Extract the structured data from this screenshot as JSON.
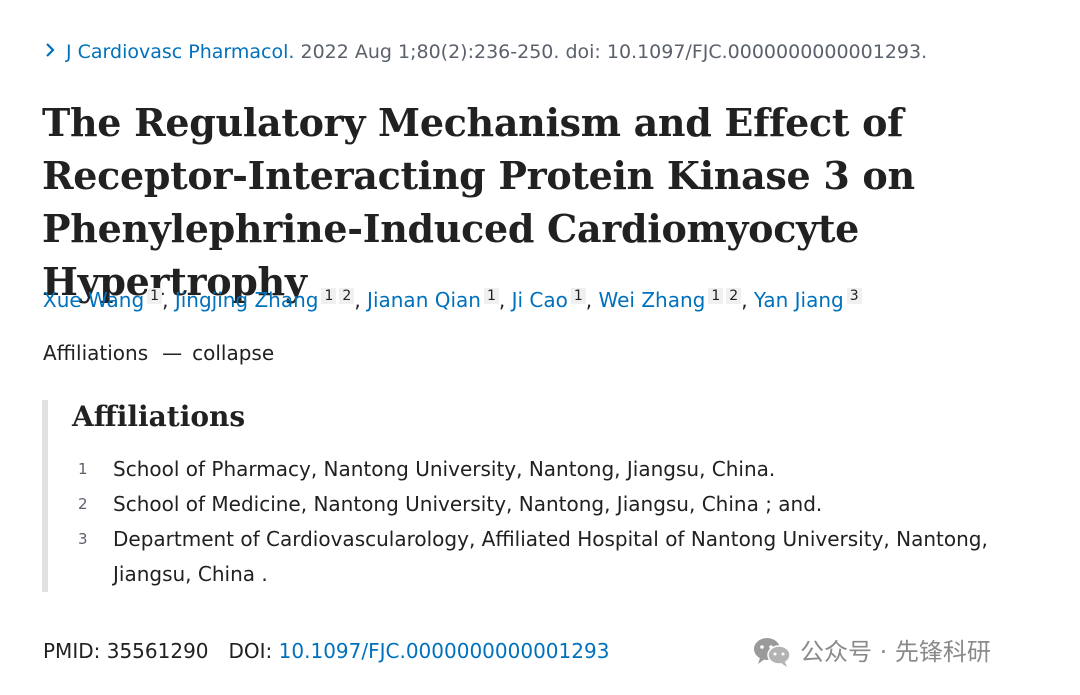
{
  "citation": {
    "chevron_icon": "chevron-right-icon",
    "journal": "J Cardiovasc Pharmacol.",
    "details": " 2022 Aug 1;80(2):236-250. doi: 10.1097/FJC.0000000000001293."
  },
  "article": {
    "title": "The Regulatory Mechanism and Effect of Receptor-Interacting Protein Kinase 3 on Phenylephrine-Induced Cardiomyocyte Hypertrophy"
  },
  "authors": [
    {
      "name": "Xue Wang",
      "affs": [
        "1"
      ]
    },
    {
      "name": "Jingjing Zhang",
      "affs": [
        "1",
        "2"
      ]
    },
    {
      "name": "Jianan Qian",
      "affs": [
        "1"
      ]
    },
    {
      "name": "Ji Cao",
      "affs": [
        "1"
      ]
    },
    {
      "name": "Wei Zhang",
      "affs": [
        "1",
        "2"
      ]
    },
    {
      "name": "Yan Jiang",
      "affs": [
        "3"
      ]
    }
  ],
  "affiliations_toggle": {
    "label": "Affiliations",
    "dash": "—",
    "action": "collapse"
  },
  "affiliations": {
    "heading": "Affiliations",
    "items": [
      {
        "num": "1",
        "text": "School of Pharmacy, Nantong University, Nantong, Jiangsu, China."
      },
      {
        "num": "2",
        "text": "School of Medicine, Nantong University, Nantong, Jiangsu, China ; and."
      },
      {
        "num": "3",
        "text": "Department of Cardiovascularology, Affiliated Hospital of Nantong University, Nantong, Jiangsu, China ."
      }
    ]
  },
  "identifiers": {
    "pmid_label": "PMID:",
    "pmid": "35561290",
    "doi_label": "DOI:",
    "doi": "10.1097/FJC.0000000000001293"
  },
  "watermark": {
    "icon": "wechat-icon",
    "text": "公众号 · 先锋科研"
  }
}
